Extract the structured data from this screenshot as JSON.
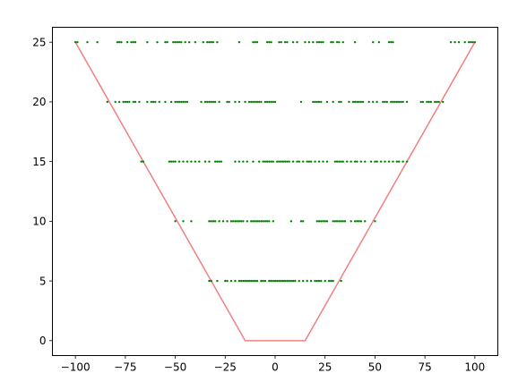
{
  "chart_data": {
    "type": "scatter",
    "title": "",
    "xlabel": "",
    "ylabel": "",
    "xlim": [
      -111.5,
      111.5
    ],
    "ylim": [
      -1.25,
      26.25
    ],
    "grid": false,
    "xticks": [
      -100,
      -75,
      -50,
      -25,
      0,
      25,
      50,
      75,
      100
    ],
    "yticks": [
      0,
      5,
      10,
      15,
      20,
      25
    ],
    "xtick_labels": [
      "−100",
      "−75",
      "−50",
      "−25",
      "0",
      "25",
      "50",
      "75",
      "100"
    ],
    "ytick_labels": [
      "0",
      "5",
      "10",
      "15",
      "20",
      "25"
    ],
    "boundary_line": {
      "color": "#f08080",
      "x": [
        -100,
        -15,
        15,
        100
      ],
      "y": [
        25,
        0,
        0,
        25
      ]
    },
    "series": [
      {
        "color": "#008000",
        "marker_size": 3,
        "points": [
          {
            "y": 5,
            "x": [
              -33,
              -32,
              -29,
              -25,
              -24,
              -22,
              -20,
              -18,
              -17,
              -16,
              -15,
              -14,
              -13,
              -12,
              -11,
              -10,
              -9,
              -7,
              -6,
              -5,
              -3,
              -2,
              -1,
              0,
              1,
              2,
              3,
              4,
              5,
              6,
              7,
              8,
              9,
              10,
              12,
              14,
              16,
              18,
              20,
              21,
              22,
              23,
              25,
              27,
              28,
              29,
              33
            ]
          },
          {
            "y": 10,
            "x": [
              -50,
              -46,
              -42,
              -33,
              -32,
              -31,
              -30,
              -28,
              -26,
              -24,
              -22,
              -21,
              -20,
              -19,
              -18,
              -17,
              -16,
              -14,
              -12,
              -11,
              -10,
              -9,
              -8,
              -7,
              -6,
              -5,
              -4,
              -3,
              -1,
              8,
              13,
              14,
              21,
              22,
              23,
              24,
              25,
              26,
              29,
              30,
              31,
              32,
              33,
              34,
              35,
              38,
              40,
              41,
              42,
              43,
              45,
              50
            ]
          },
          {
            "y": 15,
            "x": [
              -67,
              -66,
              -53,
              -52,
              -51,
              -50,
              -48,
              -46,
              -44,
              -42,
              -40,
              -38,
              -35,
              -33,
              -30,
              -29,
              -28,
              -27,
              -20,
              -18,
              -16,
              -14,
              -11,
              -8,
              -6,
              -5,
              -4,
              -3,
              -2,
              -1,
              1,
              2,
              3,
              4,
              5,
              6,
              7,
              9,
              11,
              12,
              14,
              16,
              17,
              18,
              20,
              22,
              24,
              26,
              30,
              31,
              32,
              33,
              34,
              36,
              38,
              40,
              41,
              43,
              45,
              48,
              50,
              51,
              53,
              55,
              57,
              59,
              61,
              62,
              64,
              66
            ]
          },
          {
            "y": 20,
            "x": [
              -84,
              -80,
              -78,
              -76,
              -75,
              -74,
              -73,
              -71,
              -70,
              -68,
              -64,
              -62,
              -61,
              -60,
              -58,
              -55,
              -52,
              -50,
              -49,
              -48,
              -47,
              -46,
              -45,
              -44,
              -37,
              -35,
              -34,
              -33,
              -32,
              -31,
              -30,
              -28,
              -24,
              -23,
              -20,
              -18,
              -15,
              -13,
              -12,
              -11,
              -10,
              -9,
              -8,
              -7,
              -5,
              -4,
              -3,
              -2,
              -1,
              0,
              13,
              19,
              20,
              21,
              22,
              23,
              26,
              29,
              32,
              33,
              37,
              39,
              40,
              41,
              42,
              43,
              44,
              47,
              49,
              51,
              54,
              55,
              56,
              58,
              59,
              60,
              61,
              62,
              63,
              64,
              66,
              73,
              74,
              76,
              77,
              78,
              80,
              81,
              82,
              84
            ]
          },
          {
            "y": 25,
            "x": [
              -100,
              -99,
              -94,
              -89,
              -79,
              -78,
              -77,
              -74,
              -72,
              -71,
              -70,
              -64,
              -59,
              -55,
              -54,
              -51,
              -50,
              -49,
              -48,
              -47,
              -45,
              -43,
              -40,
              -36,
              -34,
              -33,
              -32,
              -31,
              -29,
              -18,
              -11,
              -10,
              -9,
              -4,
              -3,
              -2,
              2,
              3,
              5,
              6,
              9,
              11,
              15,
              17,
              19,
              21,
              22,
              23,
              24,
              28,
              29,
              31,
              32,
              34,
              40,
              49,
              52,
              57,
              58,
              59,
              88,
              90,
              92,
              95,
              97,
              98,
              99,
              100
            ]
          }
        ]
      }
    ]
  }
}
